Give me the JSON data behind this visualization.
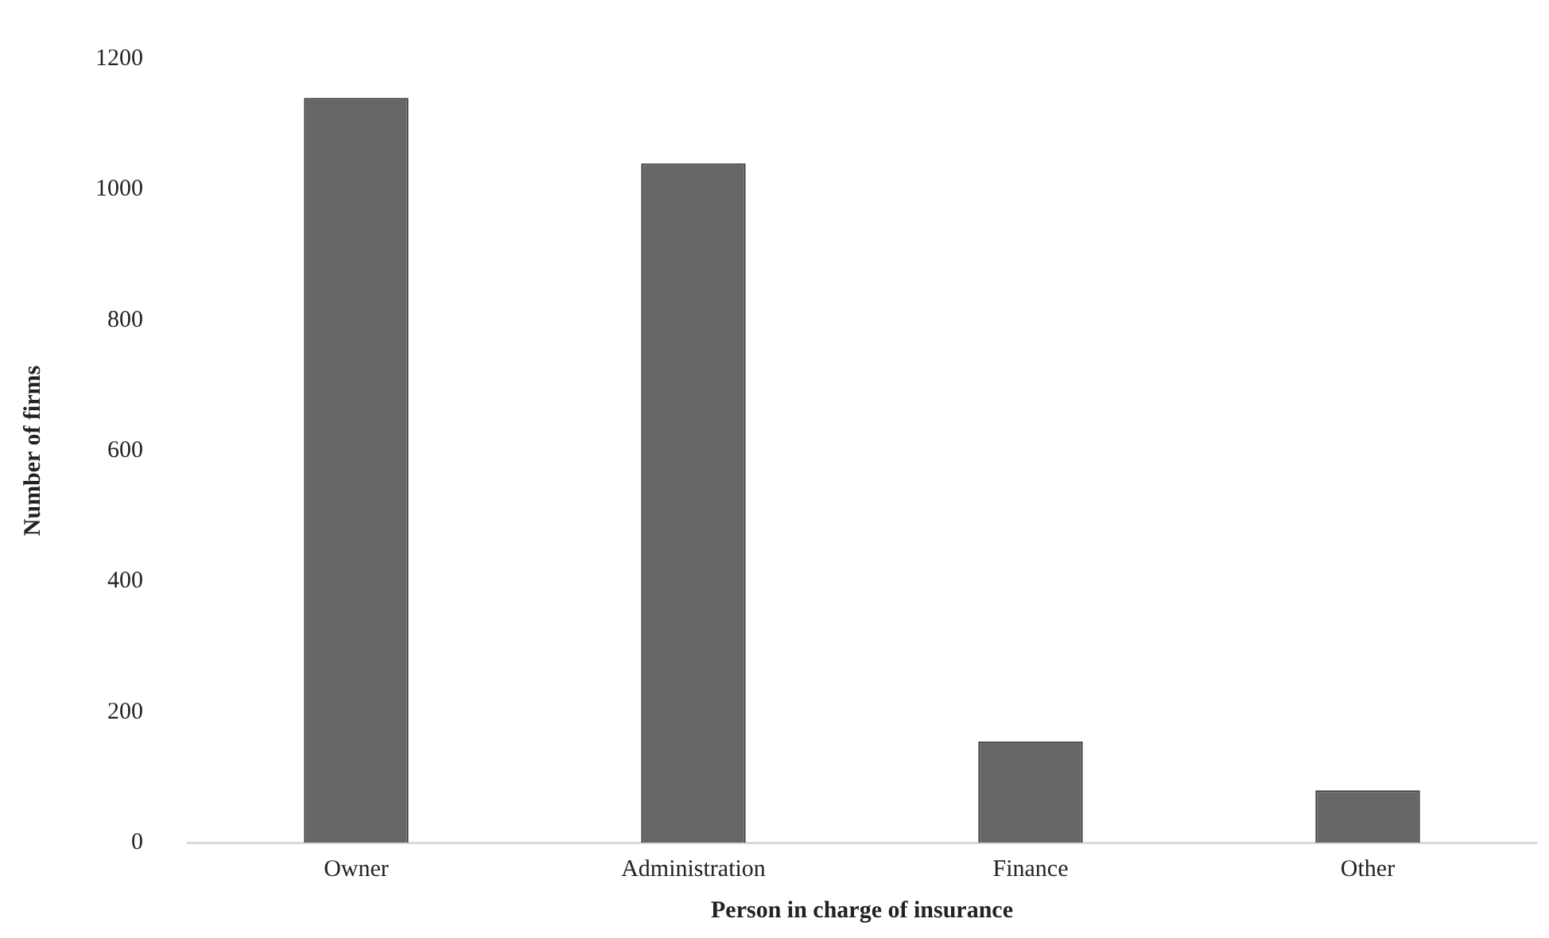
{
  "chart_data": {
    "type": "bar",
    "xlabel": "Person in charge of insurance",
    "ylabel": "Number of firms",
    "categories": [
      "Owner",
      "Administration",
      "Finance",
      "Other"
    ],
    "values": [
      1140,
      1040,
      155,
      80
    ],
    "color": "#666666",
    "ylim": [
      0,
      1200
    ],
    "yticks": [
      0,
      200,
      400,
      600,
      800,
      1000,
      1200
    ],
    "grid": false,
    "legend": false
  }
}
